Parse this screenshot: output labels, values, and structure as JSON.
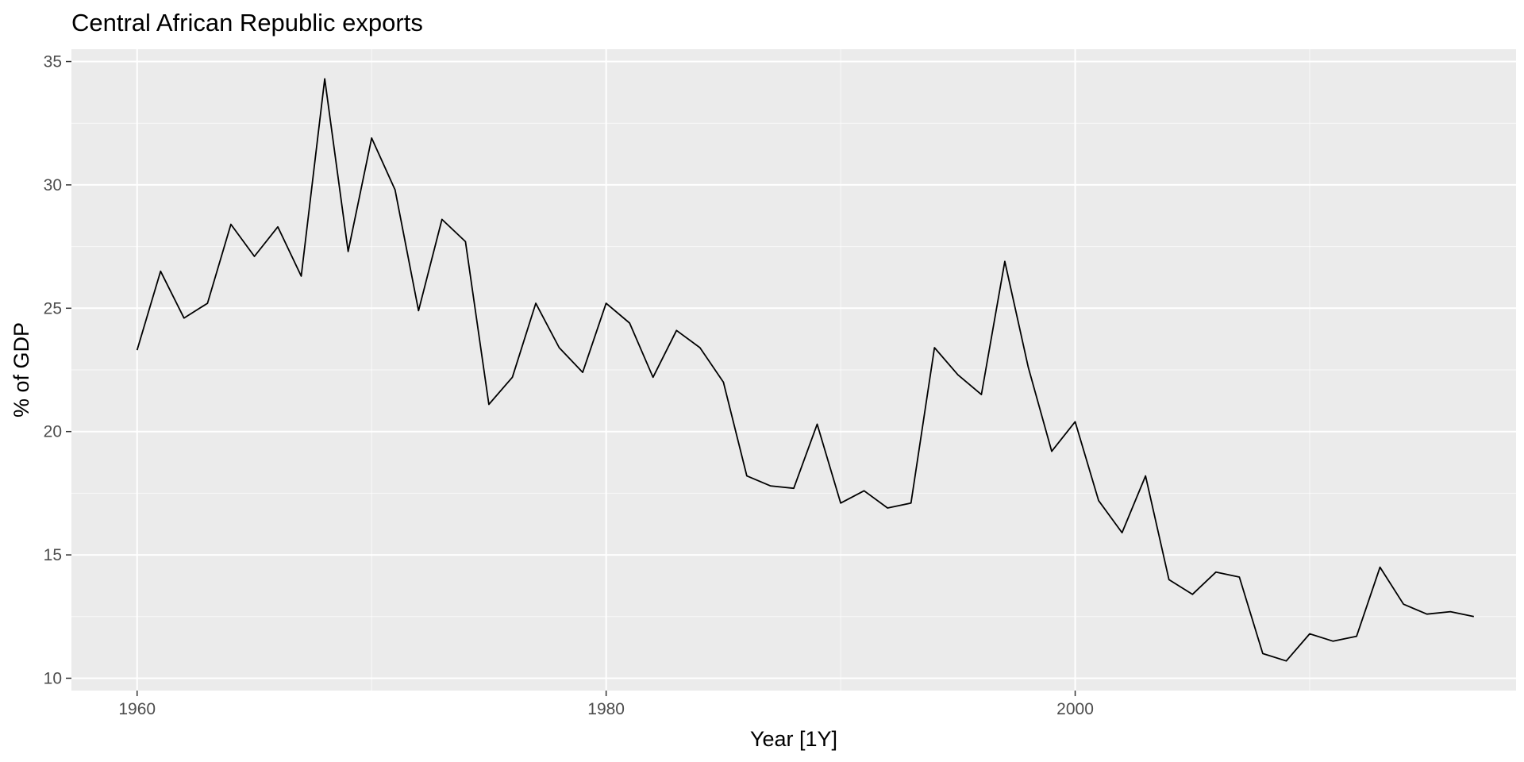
{
  "chart_data": {
    "type": "line",
    "title": "Central African Republic exports",
    "xlabel": "Year [1Y]",
    "ylabel": "% of GDP",
    "x_ticks": [
      1960,
      1980,
      2000
    ],
    "y_ticks": [
      10,
      15,
      20,
      25,
      30,
      35
    ],
    "xlim": [
      1957.2,
      2018.8
    ],
    "ylim": [
      9.5,
      35.5
    ],
    "grid": true,
    "panel_color": "#ebebeb",
    "grid_color": "#ffffff",
    "line_color": "#000000",
    "series": [
      {
        "x": [
          1960,
          1961,
          1962,
          1963,
          1964,
          1965,
          1966,
          1967,
          1968,
          1969,
          1970,
          1971,
          1972,
          1973,
          1974,
          1975,
          1976,
          1977,
          1978,
          1979,
          1980,
          1981,
          1982,
          1983,
          1984,
          1985,
          1986,
          1987,
          1988,
          1989,
          1990,
          1991,
          1992,
          1993,
          1994,
          1995,
          1996,
          1997,
          1998,
          1999,
          2000,
          2001,
          2002,
          2003,
          2004,
          2005,
          2006,
          2007,
          2008,
          2009,
          2010,
          2011,
          2012,
          2013,
          2014,
          2015,
          2016,
          2017
        ],
        "values": [
          23.3,
          26.5,
          24.6,
          25.2,
          28.4,
          27.1,
          28.3,
          26.3,
          34.3,
          27.3,
          31.9,
          29.8,
          24.9,
          28.6,
          27.7,
          21.1,
          22.2,
          25.2,
          23.4,
          22.4,
          25.2,
          24.4,
          22.2,
          24.1,
          23.4,
          22.0,
          18.2,
          17.8,
          17.7,
          20.3,
          17.1,
          17.6,
          16.9,
          17.1,
          23.4,
          22.3,
          21.5,
          26.9,
          22.6,
          19.2,
          20.4,
          17.2,
          15.9,
          18.2,
          14.0,
          13.4,
          14.3,
          14.1,
          11.0,
          10.7,
          11.8,
          11.5,
          11.7,
          14.5,
          13.0,
          12.6,
          12.7,
          12.5
        ]
      }
    ]
  }
}
